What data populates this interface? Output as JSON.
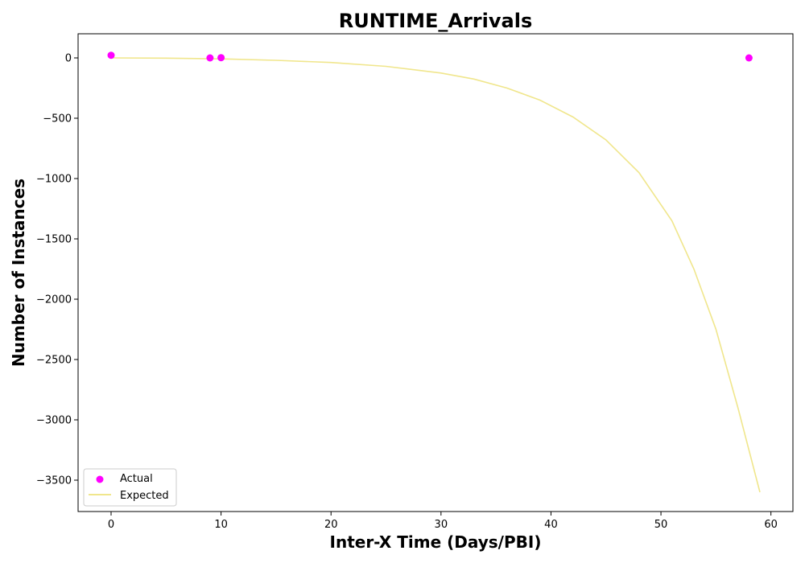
{
  "chart_data": {
    "type": "scatter",
    "title": "RUNTIME_Arrivals",
    "xlabel": "Inter-X Time (Days/PBI)",
    "ylabel": "Number of Instances",
    "xlim": [
      -3,
      62
    ],
    "ylim": [
      -3760,
      200
    ],
    "xticks": [
      0,
      10,
      20,
      30,
      40,
      50,
      60
    ],
    "yticks": [
      0,
      -500,
      -1000,
      -1500,
      -2000,
      -2500,
      -3000,
      -3500
    ],
    "x_tick_labels": [
      "0",
      "10",
      "20",
      "30",
      "40",
      "50",
      "60"
    ],
    "y_tick_labels": [
      "0",
      "−500",
      "−1000",
      "−1500",
      "−2000",
      "−2500",
      "−3000",
      "−3500"
    ],
    "grid": false,
    "legend_position": "lower-left",
    "series": [
      {
        "name": "Actual",
        "kind": "scatter",
        "color": "#ff00ff",
        "x": [
          0,
          9,
          10,
          58
        ],
        "y": [
          22,
          0,
          2,
          0
        ]
      },
      {
        "name": "Expected",
        "kind": "line",
        "color": "#f0e68c",
        "x": [
          0,
          5,
          10,
          15,
          20,
          25,
          30,
          33,
          36,
          39,
          42,
          45,
          48,
          51,
          53,
          55,
          57,
          59
        ],
        "y": [
          0,
          -2,
          -8,
          -20,
          -38,
          -70,
          -125,
          -175,
          -250,
          -350,
          -490,
          -680,
          -950,
          -1350,
          -1750,
          -2250,
          -2900,
          -3600
        ]
      }
    ]
  }
}
